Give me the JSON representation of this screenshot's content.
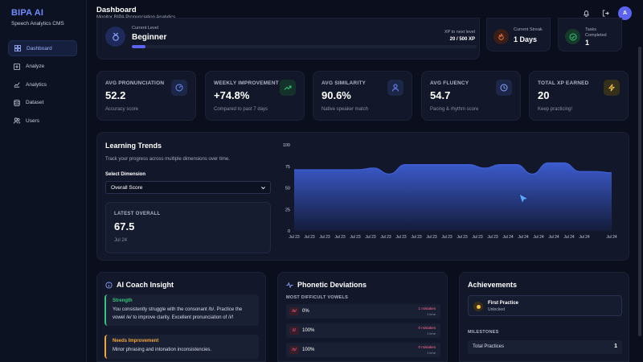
{
  "sidebar": {
    "brand": "BIPA AI",
    "subtitle": "Speech Analytics CMS",
    "items": [
      {
        "label": "Dashboard",
        "icon": "grid-icon",
        "active": true
      },
      {
        "label": "Analyze",
        "icon": "plus-square-icon",
        "active": false
      },
      {
        "label": "Analytics",
        "icon": "chart-icon",
        "active": false
      },
      {
        "label": "Dataset",
        "icon": "database-icon",
        "active": false
      },
      {
        "label": "Users",
        "icon": "users-icon",
        "active": false
      }
    ]
  },
  "header": {
    "title": "Dashboard",
    "subtitle": "Monitor BIPA Pronunciation Analytics",
    "avatar": "A"
  },
  "level": {
    "label": "Current Level",
    "value": "Beginner",
    "xp_label": "XP to next level",
    "xp_value": "20 / 500 XP",
    "progress": 0.04
  },
  "streak": {
    "label": "Current Streak",
    "value": "1 Days"
  },
  "tasks": {
    "label1": "Tasks",
    "label2": "Completed",
    "value": "1"
  },
  "stats": [
    {
      "label": "AVG PRONUNCIATION",
      "value": "52.2",
      "sub": "Accuracy score",
      "icon": "gauge-icon",
      "color": "#6f8cff"
    },
    {
      "label": "WEEKLY IMPROVEMENT",
      "value": "+74.8%",
      "sub": "Compared to past 7 days",
      "icon": "trend-up-icon",
      "color": "#35c57a"
    },
    {
      "label": "AVG SIMILARITY",
      "value": "90.6%",
      "sub": "Native speaker match",
      "icon": "person-icon",
      "color": "#6f8cff"
    },
    {
      "label": "AVG FLUENCY",
      "value": "54.7",
      "sub": "Pacing & rhythm score",
      "icon": "clock-icon",
      "color": "#8ea2ff"
    },
    {
      "label": "TOTAL XP EARNED",
      "value": "20",
      "sub": "Keep practicing!",
      "icon": "bolt-icon",
      "color": "#f2c14e"
    }
  ],
  "trends": {
    "title": "Learning Trends",
    "subtitle": "Track your progress across multiple dimensions over time.",
    "select_label": "Select Dimension",
    "select_value": "Overall Score",
    "latest_label": "LATEST OVERALL",
    "latest_value": "67.5",
    "latest_date": "Jul 24"
  },
  "chart_data": {
    "type": "area",
    "x": [
      "Jul 23",
      "Jul 23",
      "Jul 23",
      "Jul 23",
      "Jul 23",
      "Jul 23",
      "Jul 23",
      "Jul 23",
      "Jul 23",
      "Jul 23",
      "Jul 23",
      "Jul 23",
      "Jul 23",
      "Jul 23",
      "Jul 24",
      "Jul 24",
      "Jul 24",
      "Jul 24",
      "Jul 24",
      "Jul 24",
      "Jul 24"
    ],
    "values": [
      71,
      71,
      71,
      71,
      71,
      73,
      66,
      77,
      77,
      77,
      77,
      77,
      73,
      77,
      77,
      66,
      79,
      79,
      69,
      69,
      67.5
    ],
    "xticks": [
      "Jul 23",
      "Jul 23",
      "Jul 23",
      "Jul 23",
      "Jul 23",
      "Jul 23",
      "Jul 23",
      "Jul 23",
      "Jul 23",
      "Jul 23",
      "Jul 23",
      "Jul 23",
      "Jul 23",
      "Jul 23",
      "Jul 24",
      "Jul 24",
      "Jul 24",
      "Jul 24",
      "Jul 24",
      "Jul 24"
    ],
    "last_tick": "Jul 24",
    "ylim": [
      0,
      100
    ],
    "yticks": [
      "0",
      "25",
      "50",
      "75",
      "100"
    ],
    "color": "#3e5fd6"
  },
  "coach": {
    "title": "AI Coach Insight",
    "strength_label": "Strength",
    "strength_text": "You consistently struggle with the consonant /b/. Practice the vowel /e/ to improve clarity. Excellent pronunciation of /i/!",
    "improve_label": "Needs Improvement",
    "improve_text": "Minor phrasing and intonation inconsistencies."
  },
  "phonetic": {
    "title": "Phonetic Deviations",
    "section": "MOST DIFFICULT VOWELS",
    "rows": [
      {
        "symbol": "/e/",
        "pct": "0%",
        "mistakes": "1 mistakes",
        "time": "1 time"
      },
      {
        "symbol": "/i/",
        "pct": "100%",
        "mistakes": "0 mistakes",
        "time": "1 time"
      },
      {
        "symbol": "/o/",
        "pct": "100%",
        "mistakes": "0 mistakes",
        "time": "1 time"
      }
    ]
  },
  "achievements": {
    "title": "Achievements",
    "badge_title": "First Practice",
    "badge_sub": "Unlocked",
    "milestones_label": "MILESTONES",
    "milestones": [
      {
        "name": "Total Practices",
        "value": "1"
      }
    ]
  }
}
